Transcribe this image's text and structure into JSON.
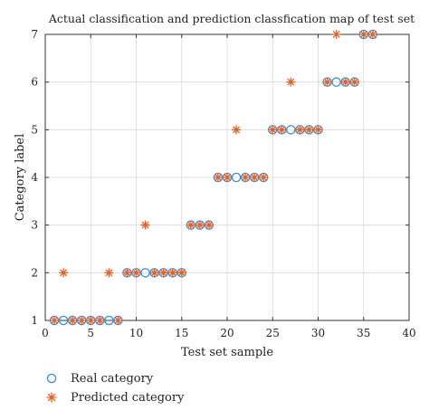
{
  "chart_data": {
    "type": "scatter",
    "title": "Actual classification and prediction classfication map of test set",
    "xlabel": "Test set sample",
    "ylabel": "Category label",
    "xlim": [
      0,
      40
    ],
    "ylim": [
      1,
      7
    ],
    "xticks": [
      0,
      5,
      10,
      15,
      20,
      25,
      30,
      35,
      40
    ],
    "yticks": [
      1,
      2,
      3,
      4,
      5,
      6,
      7
    ],
    "grid": true,
    "legend_position": "below-left",
    "series": [
      {
        "name": "Real category",
        "marker": "circle",
        "color": "#3a8fd9",
        "x": [
          1,
          2,
          3,
          4,
          5,
          6,
          7,
          8,
          9,
          10,
          11,
          12,
          13,
          14,
          15,
          16,
          17,
          18,
          19,
          20,
          21,
          22,
          23,
          24,
          25,
          26,
          27,
          28,
          29,
          30,
          31,
          32,
          33,
          34,
          35,
          36
        ],
        "y": [
          1,
          1,
          1,
          1,
          1,
          1,
          1,
          1,
          2,
          2,
          2,
          2,
          2,
          2,
          2,
          3,
          3,
          3,
          4,
          4,
          4,
          4,
          4,
          4,
          5,
          5,
          5,
          5,
          5,
          5,
          6,
          6,
          6,
          6,
          7,
          7
        ]
      },
      {
        "name": "Predicted category",
        "marker": "asterisk",
        "color": "#e0622a",
        "x": [
          1,
          2,
          3,
          4,
          5,
          6,
          7,
          8,
          9,
          10,
          11,
          12,
          13,
          14,
          15,
          16,
          17,
          18,
          19,
          20,
          21,
          22,
          23,
          24,
          25,
          26,
          27,
          28,
          29,
          30,
          31,
          32,
          33,
          34,
          35,
          36
        ],
        "y": [
          1,
          2,
          1,
          1,
          1,
          1,
          2,
          1,
          2,
          2,
          3,
          2,
          2,
          2,
          2,
          3,
          3,
          3,
          4,
          4,
          5,
          4,
          4,
          4,
          5,
          5,
          6,
          5,
          5,
          5,
          6,
          7,
          6,
          6,
          7,
          7
        ]
      }
    ]
  }
}
